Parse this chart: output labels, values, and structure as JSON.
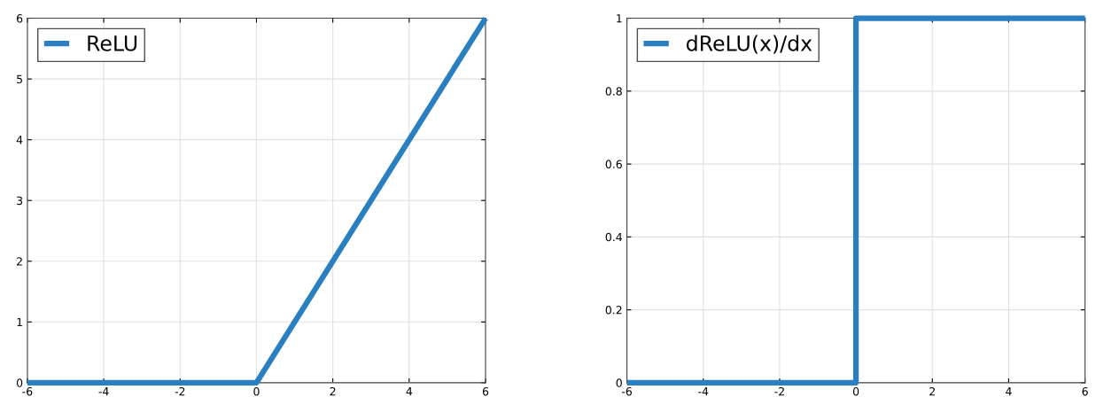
{
  "chart_data": [
    {
      "type": "line",
      "x": [
        -6,
        0,
        6
      ],
      "series": [
        {
          "name": "ReLU",
          "color": "#2a7fc0",
          "values": [
            0,
            0,
            6
          ]
        }
      ],
      "xlim": [
        -6,
        6
      ],
      "ylim": [
        0,
        6
      ],
      "xticks": [
        -6,
        -4,
        -2,
        0,
        2,
        4,
        6
      ],
      "yticks": [
        0,
        1,
        2,
        3,
        4,
        5,
        6
      ],
      "grid": true,
      "legend": "top left"
    },
    {
      "type": "step",
      "x": [
        -6,
        0,
        6
      ],
      "series": [
        {
          "name": "dReLU(x)/dx",
          "color": "#2a7fc0",
          "values": [
            0,
            1,
            1
          ]
        }
      ],
      "xlim": [
        -6,
        6
      ],
      "ylim": [
        0,
        1
      ],
      "xticks": [
        -6,
        -4,
        -2,
        0,
        2,
        4,
        6
      ],
      "yticks": [
        0,
        0.2,
        0.4,
        0.6,
        0.8,
        1
      ],
      "grid": true,
      "legend": "top left"
    }
  ]
}
